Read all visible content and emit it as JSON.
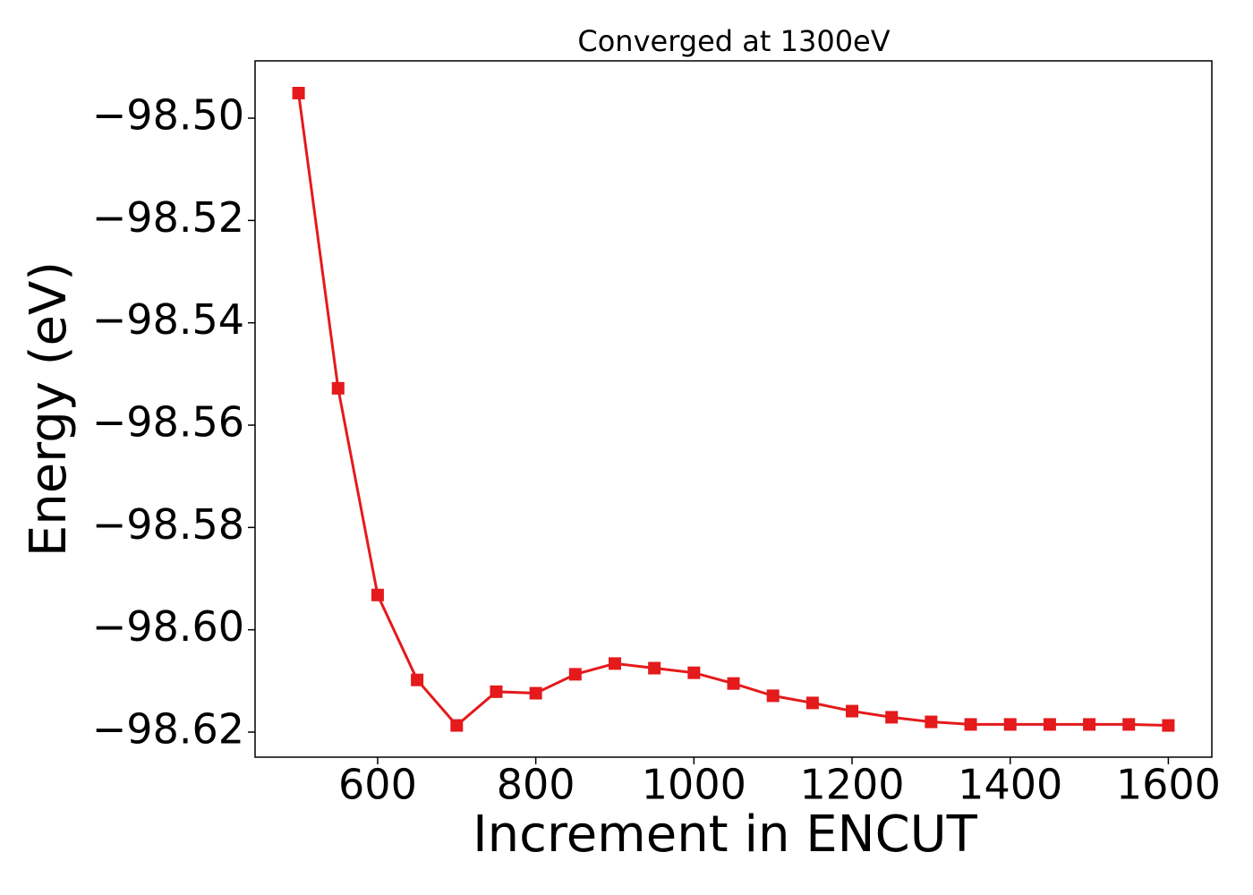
{
  "chart_data": {
    "type": "line",
    "title": "Converged at 1300eV",
    "x_label": "Increment in ENCUT",
    "y_label": "Energy (eV)",
    "x": [
      500,
      550,
      600,
      650,
      700,
      750,
      800,
      850,
      900,
      950,
      1000,
      1050,
      1100,
      1150,
      1200,
      1250,
      1300,
      1350,
      1400,
      1450,
      1500,
      1550,
      1600
    ],
    "series": [
      {
        "name": "Energy",
        "color": "#e41a1c",
        "marker": "square",
        "values": [
          -98.4951,
          -98.5528,
          -98.5932,
          -98.6098,
          -98.6187,
          -98.6121,
          -98.6124,
          -98.6087,
          -98.6066,
          -98.6075,
          -98.6084,
          -98.6105,
          -98.6129,
          -98.6143,
          -98.6159,
          -98.6171,
          -98.618,
          -98.6185,
          -98.6185,
          -98.6185,
          -98.6185,
          -98.6185,
          -98.6187
        ]
      }
    ],
    "xlim": [
      445,
      1655
    ],
    "xticks": [
      600,
      800,
      1000,
      1200,
      1400,
      1600
    ],
    "ylim": [
      -98.6249,
      -98.4888
    ],
    "yticks": [
      {
        "value": -98.5,
        "label": "−98.50"
      },
      {
        "value": -98.52,
        "label": "−98.52"
      },
      {
        "value": -98.54,
        "label": "−98.54"
      },
      {
        "value": -98.56,
        "label": "−98.56"
      },
      {
        "value": -98.58,
        "label": "−98.58"
      },
      {
        "value": -98.6,
        "label": "−98.60"
      },
      {
        "value": -98.62,
        "label": "−98.62"
      }
    ],
    "grid": false,
    "legend": false
  }
}
